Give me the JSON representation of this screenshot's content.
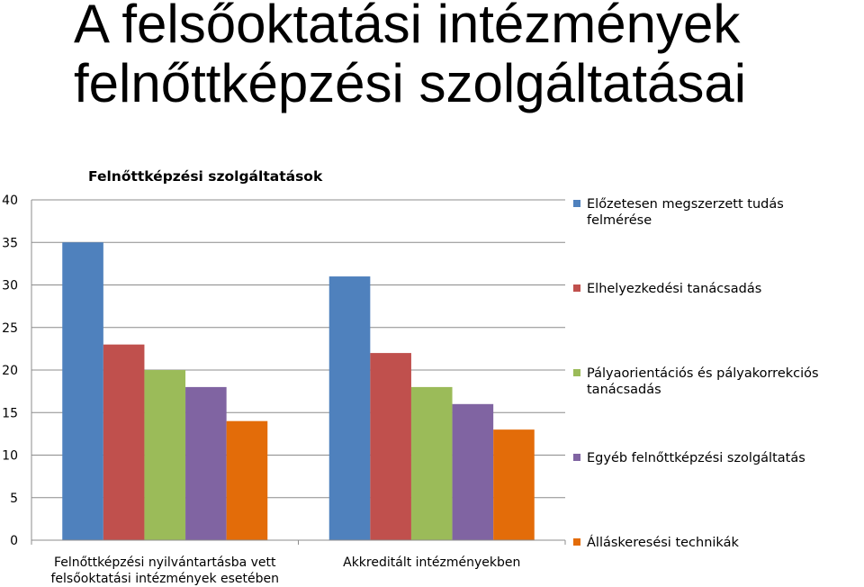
{
  "slide": {
    "title_line1": "A felsőoktatási intézmények",
    "title_line2": "felnőttképzési szolgáltatásai"
  },
  "chart_data": {
    "type": "bar",
    "title": "Felnőttképzési szolgáltatások",
    "xlabel": "",
    "ylabel": "",
    "ylim": [
      0,
      40
    ],
    "yticks": [
      0,
      5,
      10,
      15,
      20,
      25,
      30,
      35,
      40
    ],
    "grid": true,
    "legend_position": "right",
    "categories": [
      [
        "Felnőttképzési nyilvántartásba vett",
        "felsőoktatási intézmények esetében"
      ],
      [
        "Akkreditált intézményekben"
      ]
    ],
    "series": [
      {
        "name": [
          "Előzetesen megszerzett tudás",
          "felmérése"
        ],
        "color": "#4F81BD",
        "values": [
          35,
          31
        ]
      },
      {
        "name": [
          "Elhelyezkedési tanácsadás"
        ],
        "color": "#C0504D",
        "values": [
          23,
          22
        ]
      },
      {
        "name": [
          "Pályaorientációs és pályakorrekciós",
          "tanácsadás"
        ],
        "color": "#9BBB59",
        "values": [
          20,
          18
        ]
      },
      {
        "name": [
          "Egyéb felnőttképzési szolgáltatás"
        ],
        "color": "#8064A2",
        "values": [
          18,
          16
        ]
      },
      {
        "name": [
          "Álláskeresési technikák"
        ],
        "color": "#E36C09",
        "values": [
          14,
          13
        ]
      }
    ]
  }
}
